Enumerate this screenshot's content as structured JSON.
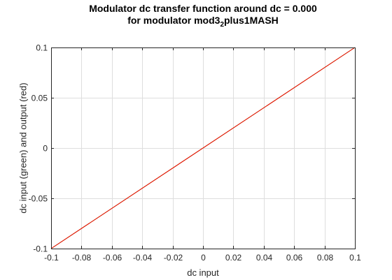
{
  "chart_data": {
    "type": "line",
    "title_lines": [
      {
        "parts": [
          {
            "t": "Modulator dc transfer function around dc = 0.000"
          }
        ]
      },
      {
        "parts": [
          {
            "t": "for modulator mod3"
          },
          {
            "t": "2",
            "sub": true
          },
          {
            "t": "plus1MASH"
          }
        ]
      }
    ],
    "xlabel": "dc input",
    "ylabel": "dc input (green) and output (red)",
    "xlim": [
      -0.1,
      0.1
    ],
    "ylim": [
      -0.1,
      0.1
    ],
    "xticks": [
      -0.1,
      -0.08,
      -0.06,
      -0.04,
      -0.02,
      0,
      0.02,
      0.04,
      0.06,
      0.08,
      0.1
    ],
    "xtick_labels": [
      "-0.1",
      "-0.08",
      "-0.06",
      "-0.04",
      "-0.02",
      "0",
      "0.02",
      "0.04",
      "0.06",
      "0.08",
      "0.1"
    ],
    "yticks": [
      -0.1,
      -0.05,
      0,
      0.05,
      0.1
    ],
    "ytick_labels": [
      "-0.1",
      "-0.05",
      "0",
      "0.05",
      "0.1"
    ],
    "grid": true,
    "series": [
      {
        "color": "#00b000",
        "x": [
          -0.1,
          0.1
        ],
        "y": [
          -0.1,
          0.1
        ]
      },
      {
        "color": "#ff0000",
        "x": [
          -0.1,
          0.1
        ],
        "y": [
          -0.1,
          0.1
        ]
      }
    ]
  }
}
